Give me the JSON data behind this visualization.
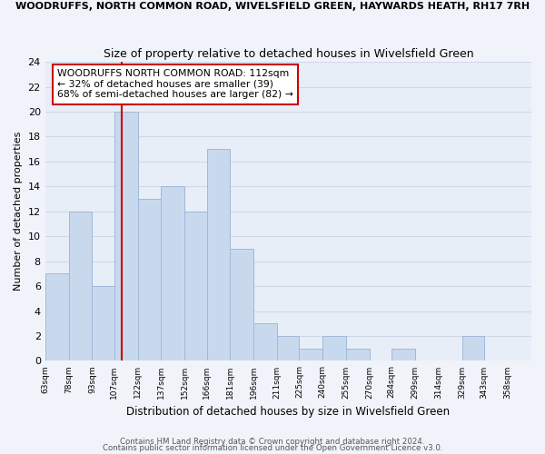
{
  "title_top": "WOODRUFFS, NORTH COMMON ROAD, WIVELSFIELD GREEN, HAYWARDS HEATH, RH17 7RH",
  "title_main": "Size of property relative to detached houses in Wivelsfield Green",
  "xlabel": "Distribution of detached houses by size in Wivelsfield Green",
  "ylabel": "Number of detached properties",
  "bar_left_edges": [
    63,
    78,
    93,
    107,
    122,
    137,
    152,
    166,
    181,
    196,
    211,
    225,
    240,
    255,
    270,
    284,
    299,
    314,
    329,
    343
  ],
  "bar_widths": [
    15,
    15,
    14,
    15,
    15,
    15,
    14,
    15,
    15,
    15,
    14,
    15,
    15,
    15,
    14,
    15,
    15,
    15,
    14,
    15
  ],
  "bar_heights": [
    7,
    12,
    6,
    20,
    13,
    14,
    12,
    17,
    9,
    3,
    2,
    1,
    2,
    1,
    0,
    1,
    0,
    0,
    2,
    0
  ],
  "bar_color": "#c9d9ed",
  "bar_edgecolor": "#a0b8d8",
  "tick_labels": [
    "63sqm",
    "78sqm",
    "93sqm",
    "107sqm",
    "122sqm",
    "137sqm",
    "152sqm",
    "166sqm",
    "181sqm",
    "196sqm",
    "211sqm",
    "225sqm",
    "240sqm",
    "255sqm",
    "270sqm",
    "284sqm",
    "299sqm",
    "314sqm",
    "329sqm",
    "343sqm",
    "358sqm"
  ],
  "tick_positions": [
    63,
    78,
    93,
    107,
    122,
    137,
    152,
    166,
    181,
    196,
    211,
    225,
    240,
    255,
    270,
    284,
    299,
    314,
    329,
    343,
    358
  ],
  "xlim": [
    63,
    358
  ],
  "ylim": [
    0,
    24
  ],
  "yticks": [
    0,
    2,
    4,
    6,
    8,
    10,
    12,
    14,
    16,
    18,
    20,
    22,
    24
  ],
  "vline_x": 112,
  "vline_color": "#cc0000",
  "annotation_text": "WOODRUFFS NORTH COMMON ROAD: 112sqm\n← 32% of detached houses are smaller (39)\n68% of semi-detached houses are larger (82) →",
  "annotation_box_facecolor": "#ffffff",
  "annotation_box_edgecolor": "#cc0000",
  "grid_color": "#d0d8e8",
  "plot_bg_color": "#e8eef8",
  "fig_bg_color": "#f0f4fa",
  "footer1": "Contains HM Land Registry data © Crown copyright and database right 2024.",
  "footer2": "Contains public sector information licensed under the Open Government Licence v3.0."
}
